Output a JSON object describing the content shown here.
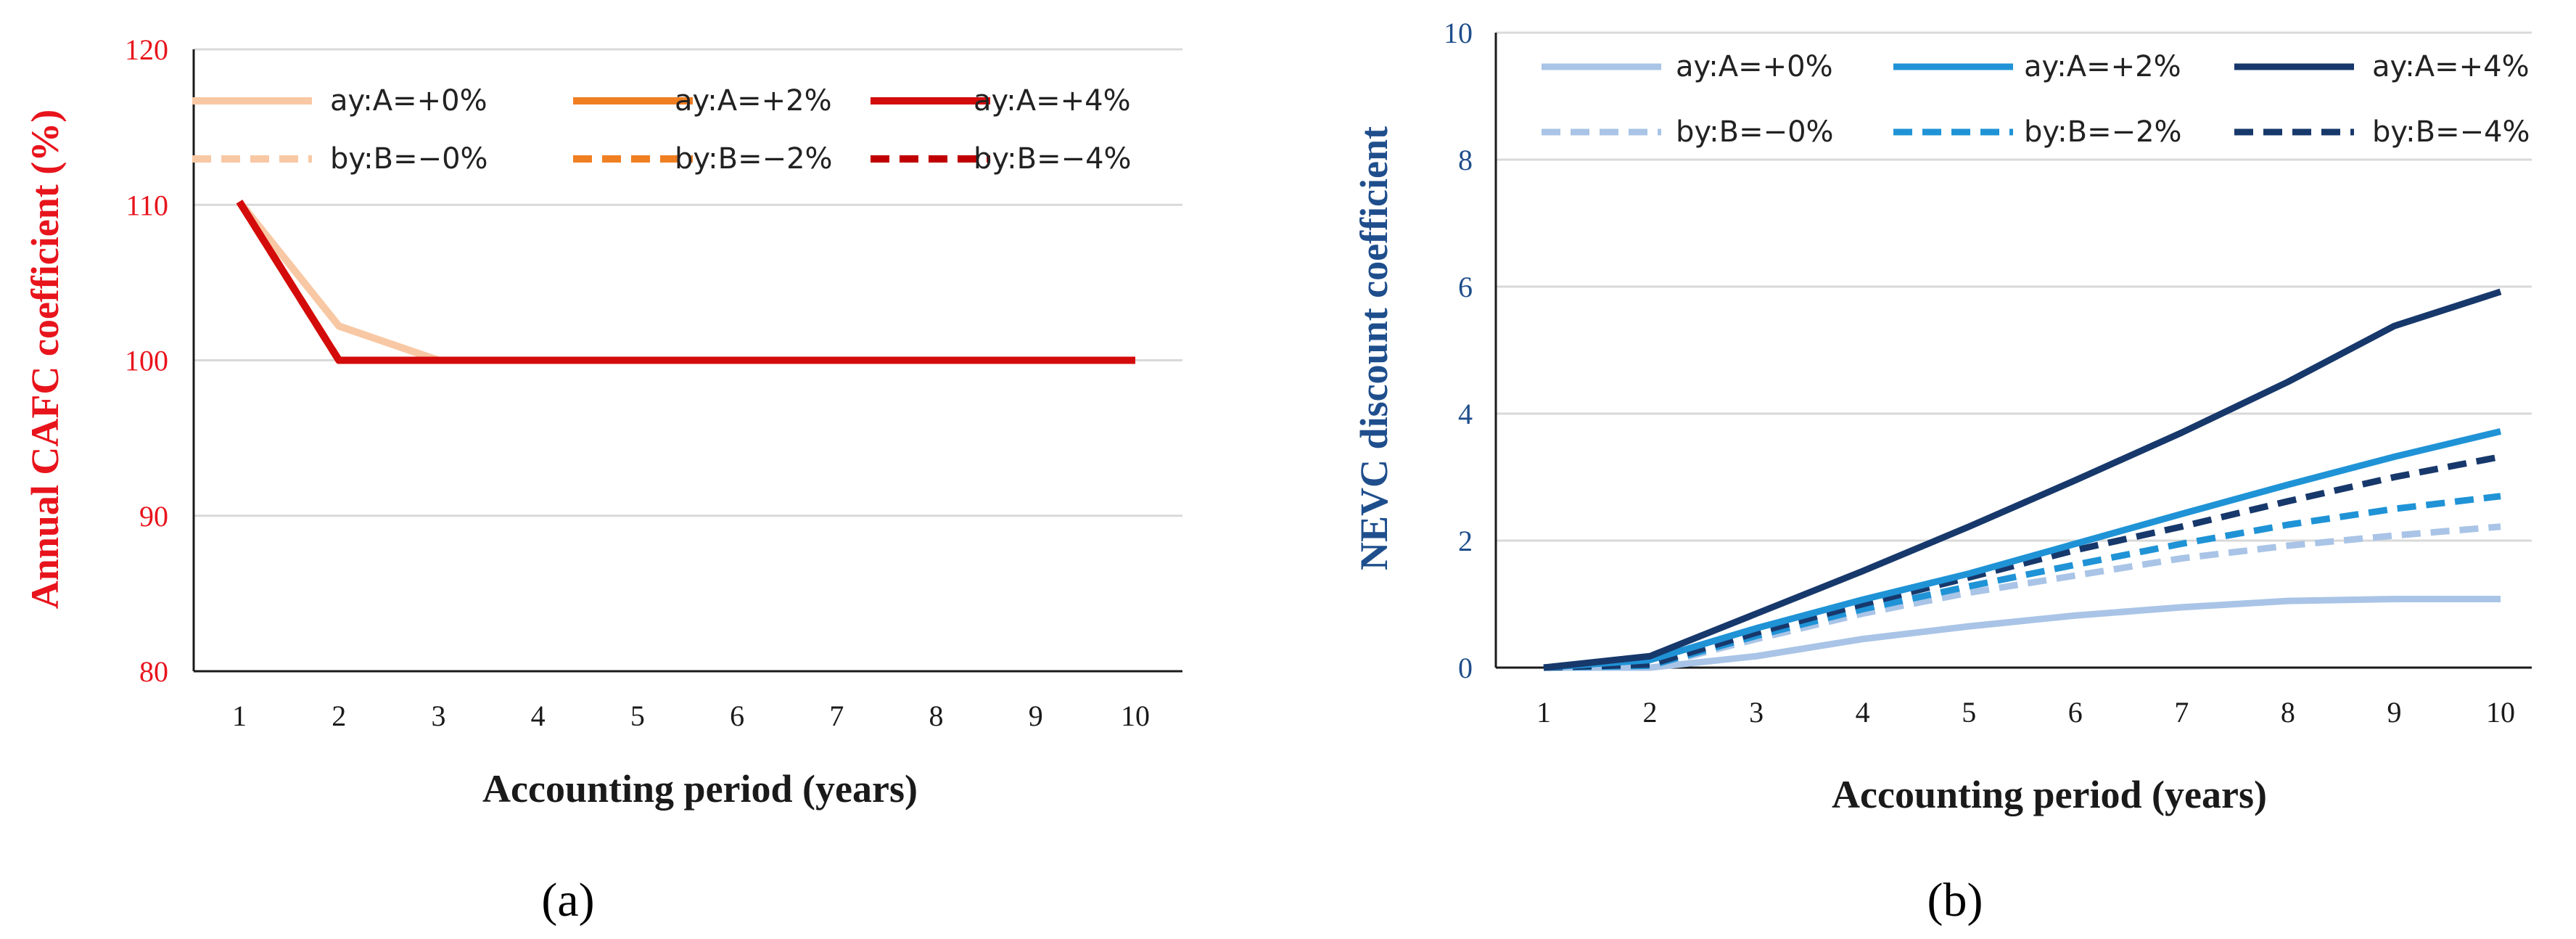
{
  "chart_data": [
    {
      "type": "line",
      "panel_label": "(a)",
      "xlabel": "Accounting period (years)",
      "ylabel": "Annual CAFC coefficient  (%)",
      "ylim": [
        80,
        120
      ],
      "yticks": [
        80,
        90,
        100,
        110,
        120
      ],
      "x": [
        1,
        2,
        3,
        4,
        5,
        6,
        7,
        8,
        9,
        10
      ],
      "grid": true,
      "legend": "top",
      "colors": {
        "ylabel": "#e8141c",
        "ytick": "#e8141c",
        "xtick": "#1a1a1a"
      },
      "series": [
        {
          "name": "ay:A=+0%",
          "color": "#f8c8a4",
          "dash": "solid",
          "values": [
            110.2,
            102.2,
            100,
            100,
            100,
            100,
            100,
            100,
            100,
            100
          ]
        },
        {
          "name": "ay:A=+2%",
          "color": "#f07f22",
          "dash": "solid",
          "values": [
            110.2,
            100,
            100,
            100,
            100,
            100,
            100,
            100,
            100,
            100
          ]
        },
        {
          "name": "ay:A=+4%",
          "color": "#d40b0b",
          "dash": "solid",
          "values": [
            110.2,
            100,
            100,
            100,
            100,
            100,
            100,
            100,
            100,
            100
          ]
        },
        {
          "name": "by:B=−0%",
          "color": "#f8c8a4",
          "dash": "dashed",
          "values": [
            110.2,
            100,
            100,
            100,
            100,
            100,
            100,
            100,
            100,
            100
          ]
        },
        {
          "name": "by:B=−2%",
          "color": "#f07f22",
          "dash": "dashed",
          "values": [
            110.2,
            100,
            100,
            100,
            100,
            100,
            100,
            100,
            100,
            100
          ]
        },
        {
          "name": "by:B=−4%",
          "color": "#c00000",
          "dash": "dashed",
          "values": [
            110.2,
            100,
            100,
            100,
            100,
            100,
            100,
            100,
            100,
            100
          ]
        }
      ],
      "draw_order": [
        1,
        3,
        4,
        5,
        0,
        2
      ]
    },
    {
      "type": "line",
      "panel_label": "(b)",
      "xlabel": "Accounting period (years)",
      "ylabel": "NEVC discount  coefficient",
      "ylim": [
        0,
        10
      ],
      "yticks": [
        0,
        2,
        4,
        6,
        8,
        10
      ],
      "x": [
        1,
        2,
        3,
        4,
        5,
        6,
        7,
        8,
        9,
        10
      ],
      "grid": true,
      "legend": "top",
      "colors": {
        "ylabel": "#1f4e8c",
        "ytick": "#1f4e8c",
        "xtick": "#1a1a1a"
      },
      "series": [
        {
          "name": "ay:A=+0%",
          "color": "#a9c4e6",
          "dash": "solid",
          "values": [
            0,
            0,
            0.18,
            0.45,
            0.65,
            0.82,
            0.95,
            1.05,
            1.08,
            1.08
          ]
        },
        {
          "name": "ay:A=+2%",
          "color": "#1f93d6",
          "dash": "solid",
          "values": [
            0,
            0.12,
            0.62,
            1.07,
            1.48,
            1.95,
            2.42,
            2.88,
            3.32,
            3.72
          ]
        },
        {
          "name": "ay:A=+4%",
          "color": "#17386b",
          "dash": "solid",
          "values": [
            0,
            0.18,
            0.85,
            1.52,
            2.22,
            2.95,
            3.7,
            4.5,
            5.38,
            5.92
          ]
        },
        {
          "name": "by:B=−0%",
          "color": "#a9c4e6",
          "dash": "dashed",
          "values": [
            0,
            0.02,
            0.45,
            0.85,
            1.18,
            1.45,
            1.72,
            1.92,
            2.08,
            2.22
          ]
        },
        {
          "name": "by:B=−2%",
          "color": "#1f93d6",
          "dash": "dashed",
          "values": [
            0,
            0.03,
            0.5,
            0.92,
            1.28,
            1.62,
            1.95,
            2.25,
            2.5,
            2.7
          ]
        },
        {
          "name": "by:B=−4%",
          "color": "#17386b",
          "dash": "dashed",
          "values": [
            0,
            0.05,
            0.55,
            1.0,
            1.42,
            1.85,
            2.22,
            2.62,
            3.0,
            3.32
          ]
        }
      ],
      "draw_order": [
        0,
        3,
        4,
        5,
        1,
        2
      ]
    }
  ]
}
